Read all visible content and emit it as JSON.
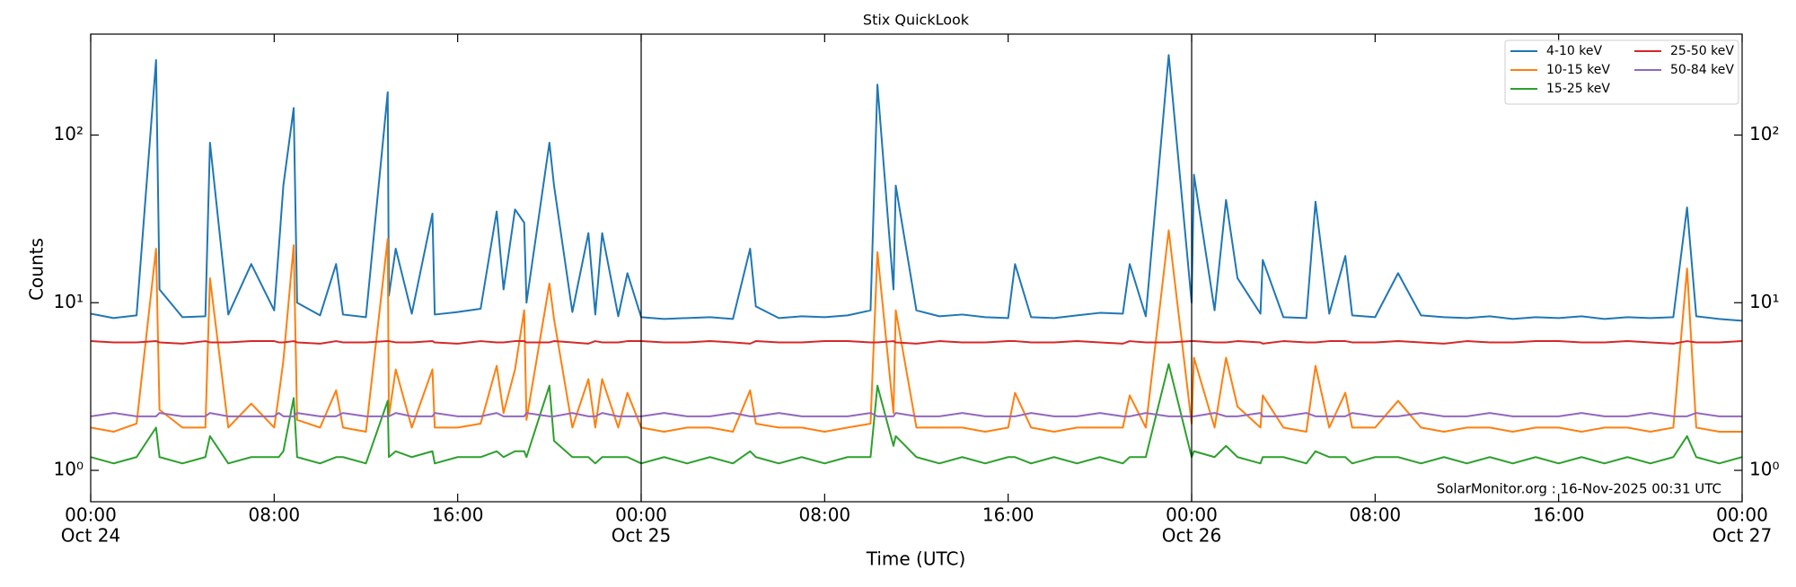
{
  "chart_data": {
    "type": "line",
    "title": "Stix QuickLook",
    "xlabel": "Time (UTC)",
    "ylabel": "Counts",
    "annotation": "SolarMonitor.org : 16-Nov-2025 00:31 UTC",
    "log_y": true,
    "legend": "upper right",
    "legend_columns": 2,
    "xlim": [
      "Oct 24 00:00",
      "Oct 27 00:00"
    ],
    "xticks": [
      {
        "value": "Oct 24 00:00",
        "label": [
          "00:00",
          "Oct 24"
        ]
      },
      {
        "value": "Oct 24 08:00",
        "label": [
          "08:00"
        ]
      },
      {
        "value": "Oct 24 16:00",
        "label": [
          "16:00"
        ]
      },
      {
        "value": "Oct 25 00:00",
        "label": [
          "00:00",
          "Oct 25"
        ]
      },
      {
        "value": "Oct 25 08:00",
        "label": [
          "08:00"
        ]
      },
      {
        "value": "Oct 25 16:00",
        "label": [
          "16:00"
        ]
      },
      {
        "value": "Oct 26 00:00",
        "label": [
          "00:00",
          "Oct 26"
        ]
      },
      {
        "value": "Oct 26 08:00",
        "label": [
          "08:00"
        ]
      },
      {
        "value": "Oct 26 16:00",
        "label": [
          "16:00"
        ]
      },
      {
        "value": "Oct 27 00:00",
        "label": [
          "00:00",
          "Oct 27"
        ]
      }
    ],
    "ylim": [
      0.65,
      400
    ],
    "yticks": [
      {
        "value": 1,
        "label": "10⁰"
      },
      {
        "value": 10,
        "label": "10¹"
      },
      {
        "value": 100,
        "label": "10²"
      }
    ],
    "x": [
      "Oct 24 00:00",
      "Oct 24 01:00",
      "Oct 24 02:00",
      "Oct 24 02:51",
      "Oct 24 03:00",
      "Oct 24 04:00",
      "Oct 24 05:00",
      "Oct 24 05:12",
      "Oct 24 06:00",
      "Oct 24 07:00",
      "Oct 24 08:00",
      "Oct 24 08:12",
      "Oct 24 08:24",
      "Oct 24 08:51",
      "Oct 24 09:00",
      "Oct 24 10:00",
      "Oct 24 10:42",
      "Oct 24 11:00",
      "Oct 24 12:00",
      "Oct 24 12:57",
      "Oct 24 13:00",
      "Oct 24 13:18",
      "Oct 24 14:00",
      "Oct 24 14:54",
      "Oct 24 15:00",
      "Oct 24 16:00",
      "Oct 24 17:00",
      "Oct 24 17:42",
      "Oct 24 18:00",
      "Oct 24 18:30",
      "Oct 24 18:54",
      "Oct 24 19:00",
      "Oct 24 20:00",
      "Oct 24 20:12",
      "Oct 24 21:00",
      "Oct 24 21:42",
      "Oct 24 22:00",
      "Oct 24 22:18",
      "Oct 24 23:00",
      "Oct 24 23:24",
      "Oct 25 00:00",
      "Oct 25 01:00",
      "Oct 25 02:00",
      "Oct 25 03:00",
      "Oct 25 04:00",
      "Oct 25 04:45",
      "Oct 25 05:00",
      "Oct 25 06:00",
      "Oct 25 07:00",
      "Oct 25 08:00",
      "Oct 25 09:00",
      "Oct 25 10:00",
      "Oct 25 10:18",
      "Oct 25 11:00",
      "Oct 25 11:06",
      "Oct 25 12:00",
      "Oct 25 13:00",
      "Oct 25 14:00",
      "Oct 25 15:00",
      "Oct 25 16:00",
      "Oct 25 16:18",
      "Oct 25 17:00",
      "Oct 25 18:00",
      "Oct 25 19:00",
      "Oct 25 20:00",
      "Oct 25 21:00",
      "Oct 25 21:18",
      "Oct 25 22:00",
      "Oct 25 23:00",
      "Oct 26 00:00",
      "Oct 26 00:06",
      "Oct 26 01:00",
      "Oct 26 01:30",
      "Oct 26 02:00",
      "Oct 26 03:00",
      "Oct 26 03:06",
      "Oct 26 04:00",
      "Oct 26 05:00",
      "Oct 26 05:24",
      "Oct 26 06:00",
      "Oct 26 06:42",
      "Oct 26 07:00",
      "Oct 26 08:00",
      "Oct 26 09:00",
      "Oct 26 10:00",
      "Oct 26 11:00",
      "Oct 26 12:00",
      "Oct 26 13:00",
      "Oct 26 14:00",
      "Oct 26 15:00",
      "Oct 26 16:00",
      "Oct 26 17:00",
      "Oct 26 18:00",
      "Oct 26 19:00",
      "Oct 26 20:00",
      "Oct 26 21:00",
      "Oct 26 21:36",
      "Oct 26 22:00",
      "Oct 26 23:00",
      "Oct 27 00:00"
    ],
    "series": [
      {
        "name": "4-10 keV",
        "color": "#1f77b4",
        "values": [
          8.6,
          8.1,
          8.4,
          280,
          12,
          8.2,
          8.3,
          90,
          8.5,
          17,
          9,
          21,
          50,
          145,
          10,
          8.4,
          17,
          8.5,
          8.2,
          180,
          11,
          21,
          8.6,
          34,
          8.5,
          8.8,
          9.2,
          35,
          12,
          36,
          30,
          10,
          90,
          50,
          8.8,
          26,
          8.5,
          26,
          8.3,
          15,
          8.2,
          8,
          8.1,
          8.2,
          8,
          21,
          9.5,
          8.1,
          8.3,
          8.2,
          8.4,
          9,
          200,
          12,
          50,
          9,
          8.3,
          8.5,
          8.2,
          8.1,
          17,
          8.2,
          8.1,
          8.4,
          8.7,
          8.6,
          17,
          8.3,
          300,
          10,
          58,
          9,
          41,
          14,
          8.6,
          18,
          8.2,
          8.1,
          40,
          8.6,
          19,
          8.4,
          8.2,
          15,
          8.4,
          8.2,
          8.1,
          8.3,
          8,
          8.2,
          8.1,
          8.3,
          8,
          8.2,
          8.1,
          8.2,
          37,
          8.3,
          8,
          7.8
        ]
      },
      {
        "name": "10-15 keV",
        "color": "#ff7f0e",
        "values": [
          1.8,
          1.7,
          1.9,
          21,
          2.3,
          1.8,
          1.8,
          14,
          1.8,
          2.5,
          1.8,
          2.8,
          4.5,
          22,
          2,
          1.8,
          3,
          1.8,
          1.7,
          24,
          2.1,
          4,
          1.8,
          4,
          1.8,
          1.8,
          1.9,
          4.2,
          2.2,
          4,
          9,
          2,
          13,
          8,
          1.8,
          3.5,
          1.8,
          3.5,
          1.8,
          2.9,
          1.8,
          1.7,
          1.8,
          1.8,
          1.7,
          3,
          1.9,
          1.8,
          1.8,
          1.7,
          1.8,
          1.9,
          20,
          2.2,
          9,
          1.8,
          1.8,
          1.8,
          1.7,
          1.8,
          2.9,
          1.8,
          1.7,
          1.8,
          1.8,
          1.8,
          2.8,
          1.8,
          27,
          1.9,
          4.7,
          1.8,
          4.7,
          2.4,
          1.8,
          2.8,
          1.8,
          1.7,
          4.2,
          1.8,
          2.9,
          1.8,
          1.8,
          2.6,
          1.8,
          1.7,
          1.8,
          1.8,
          1.7,
          1.8,
          1.8,
          1.7,
          1.8,
          1.8,
          1.7,
          1.8,
          16,
          1.8,
          1.7,
          1.7
        ]
      },
      {
        "name": "15-25 keV",
        "color": "#2ca02c",
        "values": [
          1.2,
          1.1,
          1.2,
          1.8,
          1.2,
          1.1,
          1.2,
          1.6,
          1.1,
          1.2,
          1.2,
          1.2,
          1.3,
          2.7,
          1.2,
          1.1,
          1.2,
          1.2,
          1.1,
          2.6,
          1.2,
          1.3,
          1.2,
          1.3,
          1.1,
          1.2,
          1.2,
          1.3,
          1.2,
          1.3,
          1.3,
          1.2,
          3.2,
          1.5,
          1.2,
          1.2,
          1.1,
          1.2,
          1.2,
          1.2,
          1.1,
          1.2,
          1.1,
          1.2,
          1.1,
          1.3,
          1.2,
          1.1,
          1.2,
          1.1,
          1.2,
          1.2,
          3.2,
          1.4,
          1.6,
          1.2,
          1.1,
          1.2,
          1.1,
          1.2,
          1.2,
          1.1,
          1.2,
          1.1,
          1.2,
          1.1,
          1.2,
          1.2,
          4.3,
          1.2,
          1.3,
          1.2,
          1.4,
          1.2,
          1.1,
          1.2,
          1.2,
          1.1,
          1.3,
          1.2,
          1.2,
          1.1,
          1.2,
          1.2,
          1.1,
          1.2,
          1.1,
          1.2,
          1.1,
          1.2,
          1.1,
          1.2,
          1.1,
          1.2,
          1.1,
          1.2,
          1.6,
          1.2,
          1.1,
          1.2
        ]
      },
      {
        "name": "25-50 keV",
        "color": "#d62728",
        "values": [
          5.9,
          5.8,
          5.8,
          5.9,
          5.8,
          5.7,
          5.9,
          5.8,
          5.8,
          5.9,
          5.9,
          5.8,
          5.8,
          5.9,
          5.8,
          5.7,
          5.9,
          5.8,
          5.8,
          5.9,
          5.9,
          5.8,
          5.8,
          5.9,
          5.8,
          5.7,
          5.9,
          5.8,
          5.8,
          5.9,
          5.9,
          5.8,
          5.8,
          5.9,
          5.8,
          5.7,
          5.9,
          5.8,
          5.8,
          5.9,
          5.9,
          5.8,
          5.8,
          5.9,
          5.8,
          5.7,
          5.9,
          5.8,
          5.8,
          5.9,
          5.9,
          5.8,
          5.8,
          5.9,
          5.8,
          5.7,
          5.9,
          5.8,
          5.8,
          5.9,
          5.9,
          5.8,
          5.8,
          5.9,
          5.8,
          5.7,
          5.9,
          5.8,
          5.8,
          5.9,
          5.9,
          5.8,
          5.8,
          5.9,
          5.8,
          5.7,
          5.9,
          5.8,
          5.8,
          5.9,
          5.9,
          5.8,
          5.8,
          5.9,
          5.8,
          5.7,
          5.9,
          5.8,
          5.8,
          5.9,
          5.9,
          5.8,
          5.8,
          5.9,
          5.8,
          5.7,
          5.9,
          5.8,
          5.8,
          5.9
        ]
      },
      {
        "name": "50-84 keV",
        "color": "#9467bd",
        "values": [
          2.1,
          2.2,
          2.1,
          2.1,
          2.2,
          2.1,
          2.1,
          2.2,
          2.1,
          2.1,
          2.1,
          2.2,
          2.1,
          2.1,
          2.2,
          2.1,
          2.1,
          2.2,
          2.1,
          2.1,
          2.1,
          2.2,
          2.1,
          2.1,
          2.2,
          2.1,
          2.1,
          2.2,
          2.1,
          2.1,
          2.1,
          2.2,
          2.1,
          2.1,
          2.2,
          2.1,
          2.1,
          2.2,
          2.1,
          2.1,
          2.1,
          2.2,
          2.1,
          2.1,
          2.2,
          2.1,
          2.1,
          2.2,
          2.1,
          2.1,
          2.1,
          2.2,
          2.1,
          2.1,
          2.2,
          2.1,
          2.1,
          2.2,
          2.1,
          2.1,
          2.1,
          2.2,
          2.1,
          2.1,
          2.2,
          2.1,
          2.1,
          2.2,
          2.1,
          2.1,
          2.1,
          2.2,
          2.1,
          2.1,
          2.2,
          2.1,
          2.1,
          2.2,
          2.1,
          2.1,
          2.1,
          2.2,
          2.1,
          2.1,
          2.2,
          2.1,
          2.1,
          2.2,
          2.1,
          2.1,
          2.1,
          2.2,
          2.1,
          2.1,
          2.2,
          2.1,
          2.1,
          2.2,
          2.1,
          2.1
        ]
      }
    ]
  }
}
